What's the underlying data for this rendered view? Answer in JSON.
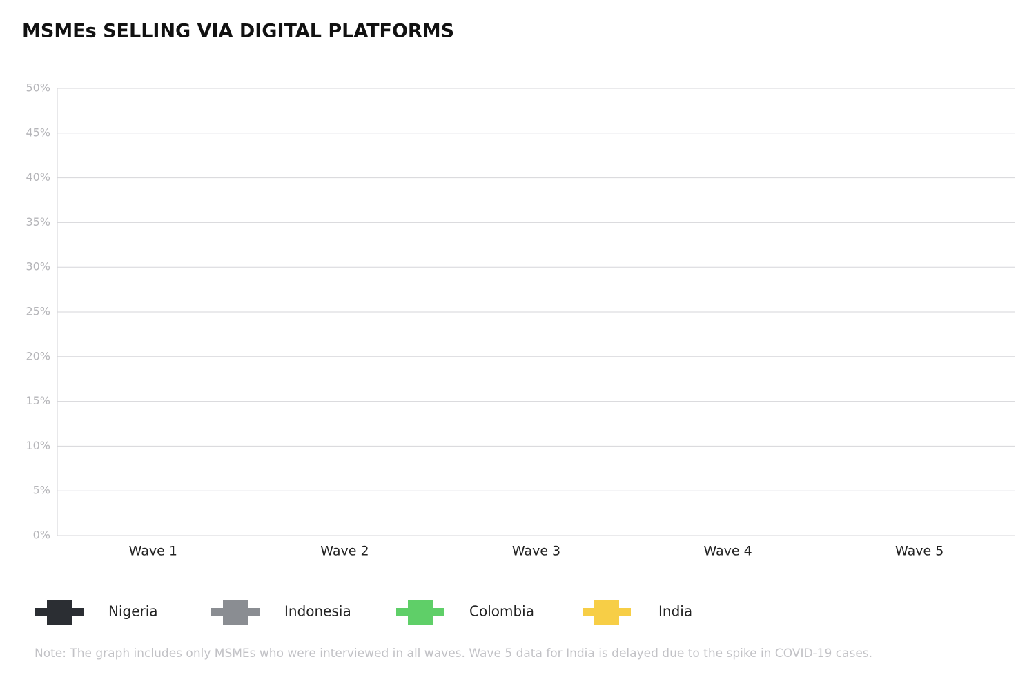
{
  "chart_data": {
    "type": "line",
    "title": "MSMEs SELLING VIA DIGITAL PLATFORMS",
    "categories": [
      "Wave 1",
      "Wave 2",
      "Wave 3",
      "Wave 4",
      "Wave 5"
    ],
    "series": [
      {
        "name": "Nigeria",
        "color": "#2b2e33",
        "values": [
          null,
          null,
          null,
          null,
          null
        ]
      },
      {
        "name": "Indonesia",
        "color": "#8a8d92",
        "values": [
          null,
          null,
          null,
          null,
          null
        ]
      },
      {
        "name": "Colombia",
        "color": "#5fcf68",
        "values": [
          null,
          null,
          null,
          null,
          null
        ]
      },
      {
        "name": "India",
        "color": "#f7ce46",
        "values": [
          null,
          null,
          null,
          null,
          null
        ]
      }
    ],
    "ylim": [
      0,
      50
    ],
    "yticks": [
      {
        "value": 0,
        "label": "0%"
      },
      {
        "value": 5,
        "label": "5%"
      },
      {
        "value": 10,
        "label": "10%"
      },
      {
        "value": 15,
        "label": "15%"
      },
      {
        "value": 20,
        "label": "20%"
      },
      {
        "value": 25,
        "label": "25%"
      },
      {
        "value": 30,
        "label": "30%"
      },
      {
        "value": 35,
        "label": "35%"
      },
      {
        "value": 40,
        "label": "40%"
      },
      {
        "value": 45,
        "label": "45%"
      },
      {
        "value": 50,
        "label": "50%"
      }
    ],
    "grid": true,
    "legend": "bottom",
    "note": "Note: The graph includes only MSMEs who were interviewed in all waves. Wave 5 data for India is delayed due to the spike in COVID-19 cases."
  }
}
